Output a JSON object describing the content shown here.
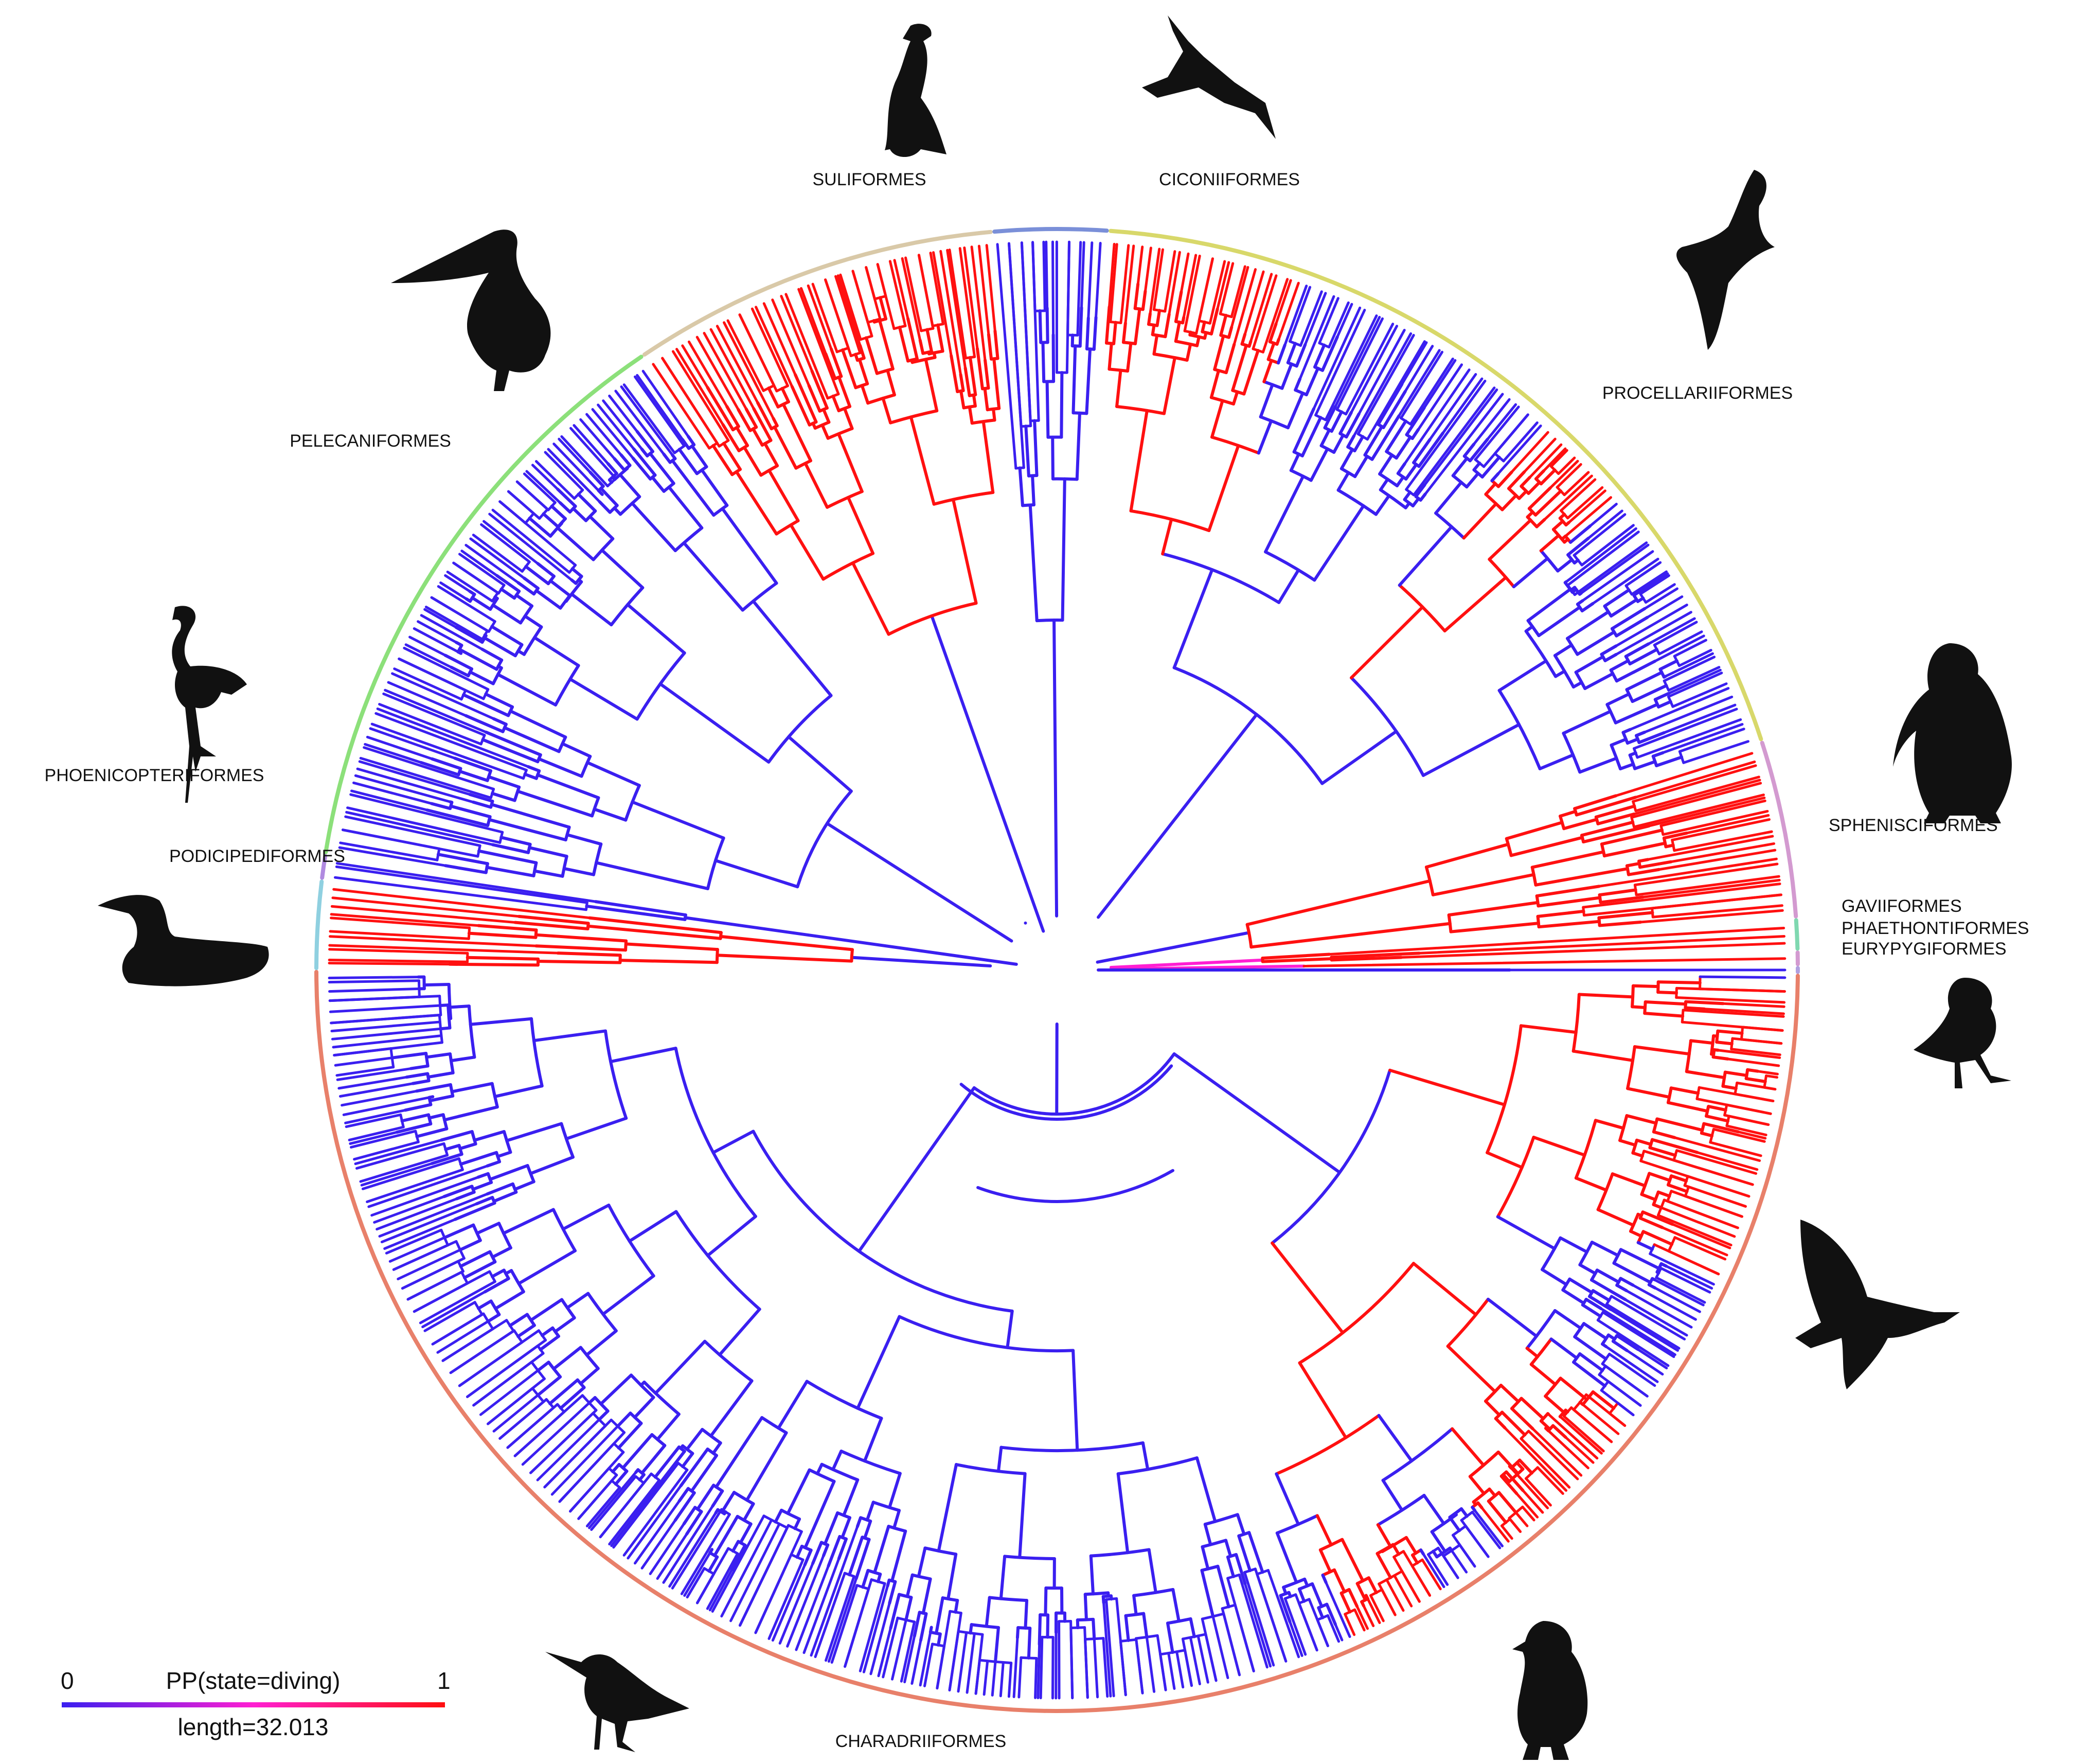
{
  "tree": {
    "center_label": "",
    "state_colors": {
      "non_diving": "#3a1ff0",
      "intermediate": "#ff1fd2",
      "diving": "#ff1010"
    }
  },
  "orders": [
    {
      "name": "SULIFORMES",
      "color": "#d9c9a8",
      "state": "diving",
      "silhouette": "cormorant-icon"
    },
    {
      "name": "CICONIIFORMES",
      "color": "#7a8fd8",
      "state": "non_diving",
      "silhouette": "stork-icon"
    },
    {
      "name": "PROCELLARIIFORMES",
      "color": "#d8d86a",
      "state": "mixed",
      "silhouette": "petrel-icon"
    },
    {
      "name": "SPHENISCIFORMES",
      "color": "#d39ad0",
      "state": "diving",
      "silhouette": "penguin-icon"
    },
    {
      "name": "GAVIIFORMES",
      "color": "#7fd8b0",
      "state": "diving",
      "silhouette": ""
    },
    {
      "name": "PHAETHONTIFORMES",
      "color": "#d39ad0",
      "state": "diving",
      "silhouette": ""
    },
    {
      "name": "EURYPYGIFORMES",
      "color": "#b0a0e0",
      "state": "non_diving",
      "silhouette": "sunbittern-icon"
    },
    {
      "name": "CHARADRIIFORMES",
      "color": "#e8806a",
      "state": "mixed",
      "silhouette": "shorebird-icon"
    },
    {
      "name": "PODICIPEDIFORMES",
      "color": "#8fd0e0",
      "state": "diving",
      "silhouette": "grebe-icon"
    },
    {
      "name": "PHOENICOPTERIFORMES",
      "color": "#b08ae0",
      "state": "non_diving",
      "silhouette": "flamingo-icon"
    },
    {
      "name": "PELECANIFORMES",
      "color": "#8ce07a",
      "state": "non_diving",
      "silhouette": "pelican-icon"
    }
  ],
  "extra_silhouettes": [
    "gull-icon",
    "puffin-icon"
  ],
  "legend": {
    "title": "PP(state=diving)",
    "min_label": "0",
    "max_label": "1",
    "length_label": "length=32.013",
    "gradient": [
      "#3a1ff0",
      "#ff1fd2",
      "#ff1010"
    ]
  }
}
